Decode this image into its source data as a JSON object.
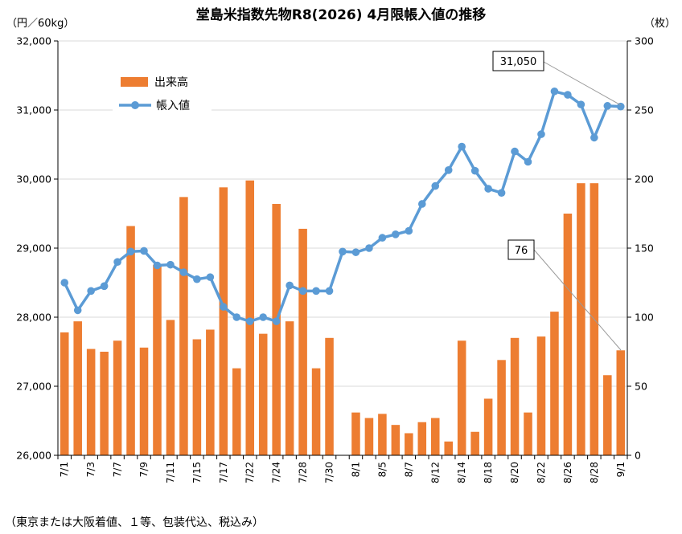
{
  "chart_data": {
    "type": "bar+line",
    "title": "堂島米指数先物R8(2026) 4月限帳入値の推移",
    "y_left_unit": "（円／60kg）",
    "y_right_unit": "（枚）",
    "y_left_ticks": [
      "26,000",
      "27,000",
      "28,000",
      "29,000",
      "30,000",
      "31,000",
      "32,000"
    ],
    "y_right_ticks": [
      "0",
      "50",
      "100",
      "150",
      "200",
      "250",
      "300"
    ],
    "y_left_range": [
      26000,
      32000
    ],
    "y_right_range": [
      0,
      300
    ],
    "grid": "horizontal",
    "legend_position": "top-left",
    "legend": [
      {
        "name": "出来高",
        "color": "#ED7D31"
      },
      {
        "name": "帳入値",
        "color": "#5B9BD5"
      }
    ],
    "x_tick_labels": [
      "7/1",
      "7/3",
      "7/7",
      "7/9",
      "7/11",
      "7/15",
      "7/17",
      "7/22",
      "7/24",
      "7/28",
      "7/30",
      "8/1",
      "8/5",
      "8/7",
      "8/12",
      "8/14",
      "8/18",
      "8/20",
      "8/22",
      "8/26",
      "8/28",
      "9/1"
    ],
    "volume": [
      89,
      97,
      77,
      75,
      83,
      166,
      78,
      138,
      98,
      187,
      84,
      91,
      194,
      63,
      199,
      88,
      182,
      97,
      164,
      63,
      85,
      null,
      31,
      27,
      30,
      22,
      16,
      24,
      27,
      10,
      83,
      17,
      41,
      69,
      85,
      31,
      86,
      104,
      175,
      197,
      197,
      58,
      76
    ],
    "settlement": [
      28500,
      28100,
      28380,
      28450,
      28800,
      28950,
      28960,
      28750,
      28760,
      28650,
      28550,
      28580,
      28150,
      28000,
      27940,
      28000,
      27940,
      28460,
      28380,
      28380,
      28380,
      28950,
      28940,
      29000,
      29150,
      29200,
      29250,
      29640,
      29900,
      30130,
      30470,
      30120,
      29860,
      29800,
      30400,
      30250,
      30650,
      31270,
      31220,
      31080,
      30600,
      31060,
      31050
    ],
    "annotations": [
      "31,050",
      "76"
    ],
    "footnote": "（東京または大阪着値、１等、包装代込、税込み）"
  }
}
